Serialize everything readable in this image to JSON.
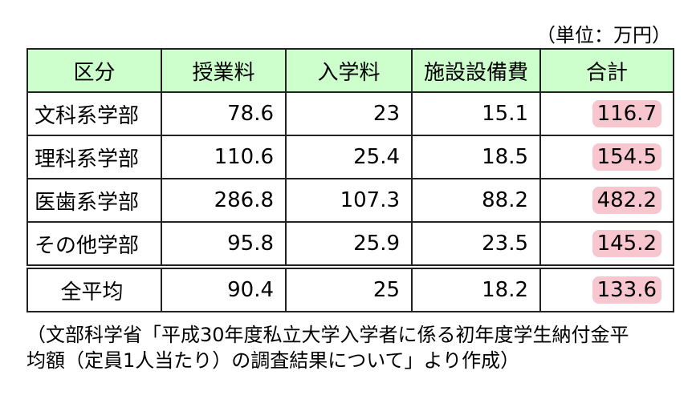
{
  "unit": "（単位：万円）",
  "table": {
    "header": [
      "区分",
      "授業料",
      "入学料",
      "施設設備費",
      "合計"
    ],
    "rows": [
      [
        "文科系学部",
        78.6,
        23,
        15.1,
        116.7
      ],
      [
        "理科系学部",
        110.6,
        25.4,
        18.5,
        154.5
      ],
      [
        "医歯系学部",
        286.8,
        107.3,
        88.2,
        482.2
      ],
      [
        "その他学部",
        95.8,
        25.9,
        23.5,
        145.2
      ]
    ],
    "average": [
      "全平均",
      90.4,
      25,
      18.2,
      133.6
    ]
  },
  "note": [
    "（文部科学省「平成30年度私立大学入学者に係る初年度学生納付金平",
    "均額（定員1人当たり）の調査結果について」より作成）"
  ]
}
